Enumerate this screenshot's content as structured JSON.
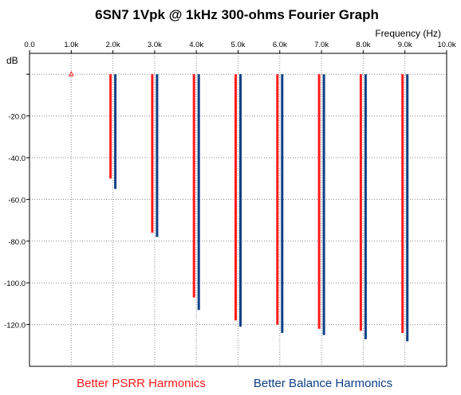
{
  "chart_data": {
    "type": "bar",
    "title": "6SN7 1Vpk @ 1kHz 300-ohms Fourier Graph",
    "xlabel": "Frequency  (Hz)",
    "ylabel": "dB",
    "xlim": [
      0,
      10000
    ],
    "ylim": [
      -140,
      10
    ],
    "x_ticks": [
      "0.0",
      "1.0k",
      "2.0k",
      "3.0k",
      "4.0k",
      "5.0k",
      "6.0k",
      "7.0k",
      "8.0k",
      "9.0k",
      "10.0k"
    ],
    "y_ticks": [
      "-20.0",
      "-40.0",
      "-60.0",
      "-80.0",
      "-100.0",
      "-120.0"
    ],
    "grid": true,
    "reference_marker": {
      "x": 1000,
      "y": 0
    },
    "categories": [
      2000,
      3000,
      4000,
      5000,
      6000,
      7000,
      8000,
      9000
    ],
    "series": [
      {
        "name": "Better PSRR Harmonics",
        "color": "#ff1a1a",
        "values": [
          -50,
          -76,
          -107,
          -118,
          -120,
          -122,
          -123,
          -124
        ]
      },
      {
        "name": "Better Balance Harmonics",
        "color": "#0d3f85",
        "values": [
          -55,
          -78,
          -113,
          -121,
          -124,
          -125,
          -127,
          -128
        ]
      }
    ],
    "legend_position": "bottom"
  }
}
